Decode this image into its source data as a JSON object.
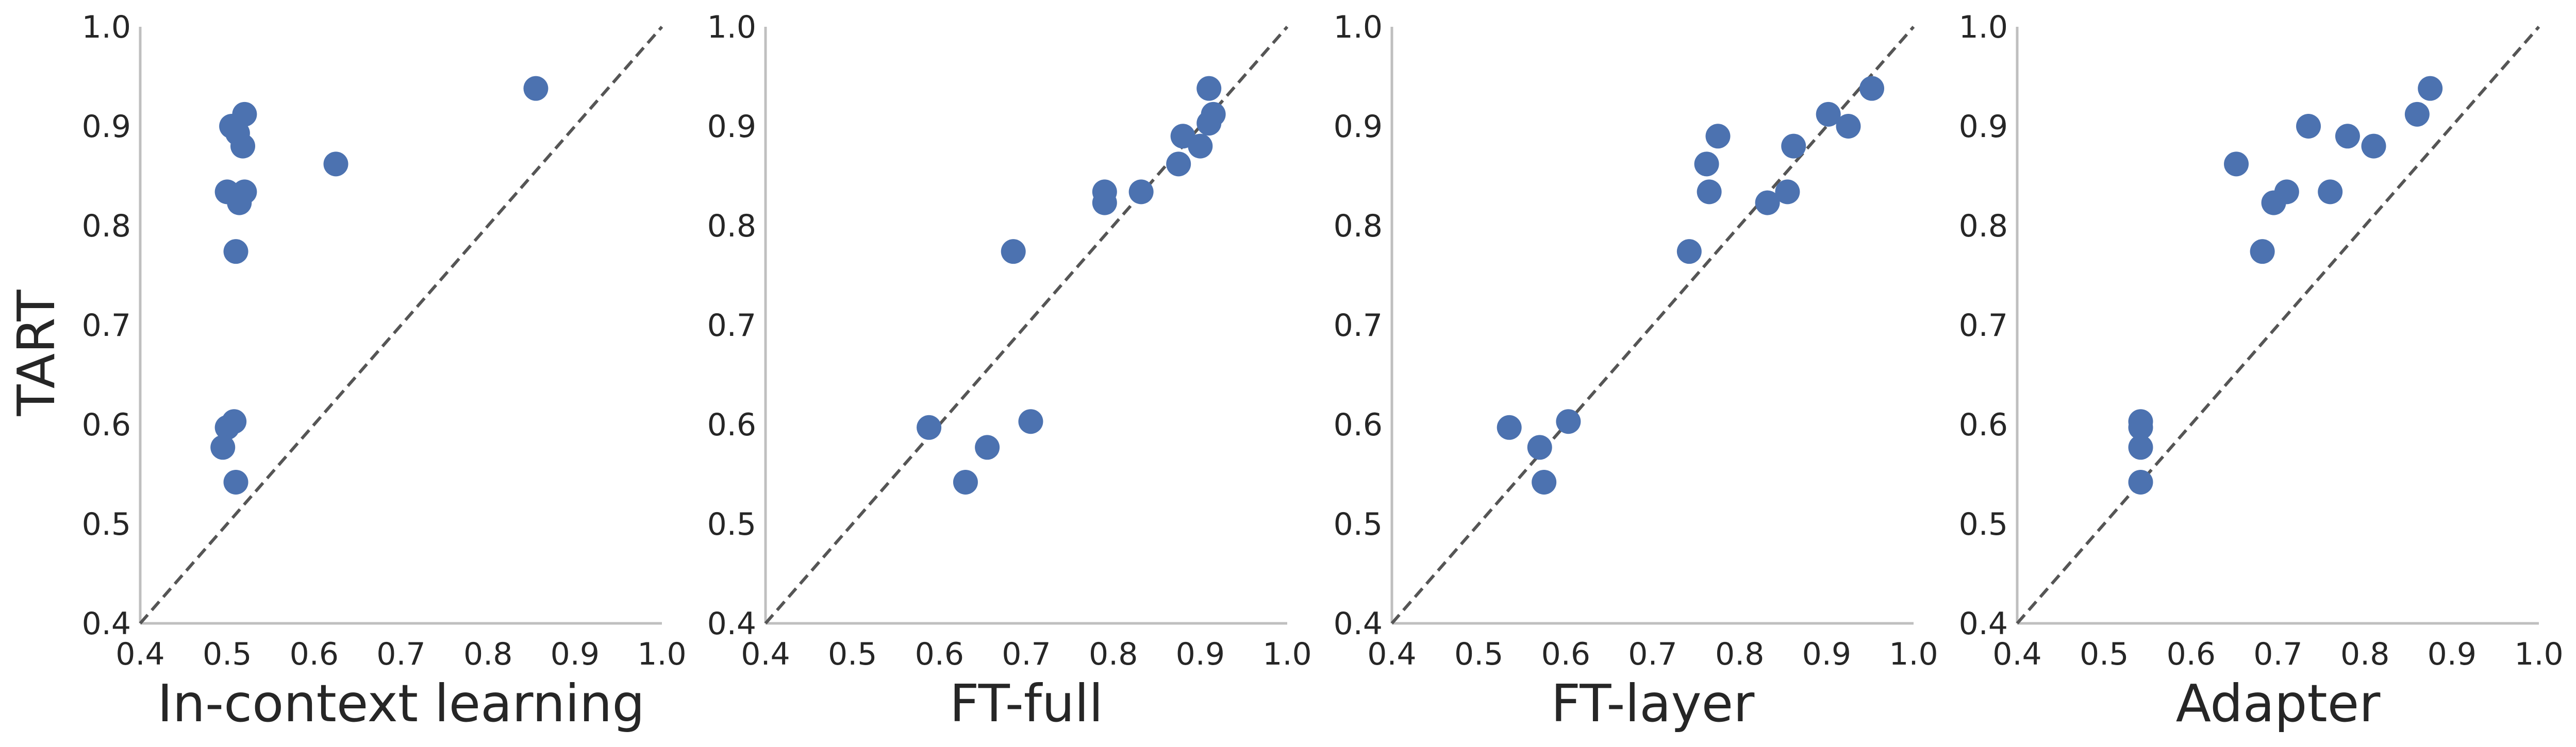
{
  "chart_data": [
    {
      "type": "scatter",
      "xlabel": "In-context learning",
      "ylabel": "TART",
      "xlim": [
        0.4,
        1.0
      ],
      "ylim": [
        0.4,
        1.0
      ],
      "xticks": [
        "0.4",
        "0.5",
        "0.6",
        "0.7",
        "0.8",
        "0.9",
        "1.0"
      ],
      "yticks": [
        "0.4",
        "0.5",
        "0.6",
        "0.7",
        "0.8",
        "0.9",
        "1.0"
      ],
      "diagonal": "y = x (dashed)",
      "grid": false,
      "marker_color": "#4c72b0",
      "points": [
        {
          "x": 0.855,
          "y": 0.938
        },
        {
          "x": 0.625,
          "y": 0.862
        },
        {
          "x": 0.52,
          "y": 0.912
        },
        {
          "x": 0.505,
          "y": 0.9
        },
        {
          "x": 0.512,
          "y": 0.893
        },
        {
          "x": 0.518,
          "y": 0.88
        },
        {
          "x": 0.5,
          "y": 0.834
        },
        {
          "x": 0.52,
          "y": 0.834
        },
        {
          "x": 0.514,
          "y": 0.823
        },
        {
          "x": 0.51,
          "y": 0.774
        },
        {
          "x": 0.508,
          "y": 0.603
        },
        {
          "x": 0.5,
          "y": 0.597
        },
        {
          "x": 0.495,
          "y": 0.577
        },
        {
          "x": 0.51,
          "y": 0.542
        }
      ]
    },
    {
      "type": "scatter",
      "xlabel": "FT-full",
      "ylabel": "",
      "xlim": [
        0.4,
        1.0
      ],
      "ylim": [
        0.4,
        1.0
      ],
      "xticks": [
        "0.4",
        "0.5",
        "0.6",
        "0.7",
        "0.8",
        "0.9",
        "1.0"
      ],
      "yticks": [
        "0.4",
        "0.5",
        "0.6",
        "0.7",
        "0.8",
        "0.9",
        "1.0"
      ],
      "diagonal": "y = x (dashed)",
      "grid": false,
      "marker_color": "#4c72b0",
      "points": [
        {
          "x": 0.91,
          "y": 0.938
        },
        {
          "x": 0.915,
          "y": 0.912
        },
        {
          "x": 0.91,
          "y": 0.903
        },
        {
          "x": 0.88,
          "y": 0.89
        },
        {
          "x": 0.9,
          "y": 0.88
        },
        {
          "x": 0.875,
          "y": 0.862
        },
        {
          "x": 0.79,
          "y": 0.834
        },
        {
          "x": 0.832,
          "y": 0.834
        },
        {
          "x": 0.79,
          "y": 0.823
        },
        {
          "x": 0.685,
          "y": 0.774
        },
        {
          "x": 0.705,
          "y": 0.603
        },
        {
          "x": 0.588,
          "y": 0.597
        },
        {
          "x": 0.655,
          "y": 0.577
        },
        {
          "x": 0.63,
          "y": 0.542
        }
      ]
    },
    {
      "type": "scatter",
      "xlabel": "FT-layer",
      "ylabel": "",
      "xlim": [
        0.4,
        1.0
      ],
      "ylim": [
        0.4,
        1.0
      ],
      "xticks": [
        "0.4",
        "0.5",
        "0.6",
        "0.7",
        "0.8",
        "0.9",
        "1.0"
      ],
      "yticks": [
        "0.4",
        "0.5",
        "0.6",
        "0.7",
        "0.8",
        "0.9",
        "1.0"
      ],
      "diagonal": "y = x (dashed)",
      "grid": false,
      "marker_color": "#4c72b0",
      "points": [
        {
          "x": 0.952,
          "y": 0.938
        },
        {
          "x": 0.902,
          "y": 0.912
        },
        {
          "x": 0.925,
          "y": 0.9
        },
        {
          "x": 0.775,
          "y": 0.89
        },
        {
          "x": 0.862,
          "y": 0.88
        },
        {
          "x": 0.762,
          "y": 0.862
        },
        {
          "x": 0.765,
          "y": 0.834
        },
        {
          "x": 0.855,
          "y": 0.834
        },
        {
          "x": 0.832,
          "y": 0.823
        },
        {
          "x": 0.742,
          "y": 0.774
        },
        {
          "x": 0.603,
          "y": 0.603
        },
        {
          "x": 0.535,
          "y": 0.597
        },
        {
          "x": 0.57,
          "y": 0.577
        },
        {
          "x": 0.575,
          "y": 0.542
        }
      ]
    },
    {
      "type": "scatter",
      "xlabel": "Adapter",
      "ylabel": "",
      "xlim": [
        0.4,
        1.0
      ],
      "ylim": [
        0.4,
        1.0
      ],
      "xticks": [
        "0.4",
        "0.5",
        "0.6",
        "0.7",
        "0.8",
        "0.9",
        "1.0"
      ],
      "yticks": [
        "0.4",
        "0.5",
        "0.6",
        "0.7",
        "0.8",
        "0.9",
        "1.0"
      ],
      "diagonal": "y = x (dashed)",
      "grid": false,
      "marker_color": "#4c72b0",
      "points": [
        {
          "x": 0.875,
          "y": 0.938
        },
        {
          "x": 0.86,
          "y": 0.912
        },
        {
          "x": 0.735,
          "y": 0.9
        },
        {
          "x": 0.78,
          "y": 0.89
        },
        {
          "x": 0.81,
          "y": 0.88
        },
        {
          "x": 0.652,
          "y": 0.862
        },
        {
          "x": 0.71,
          "y": 0.834
        },
        {
          "x": 0.76,
          "y": 0.834
        },
        {
          "x": 0.695,
          "y": 0.823
        },
        {
          "x": 0.682,
          "y": 0.774
        },
        {
          "x": 0.542,
          "y": 0.603
        },
        {
          "x": 0.542,
          "y": 0.597
        },
        {
          "x": 0.542,
          "y": 0.577
        },
        {
          "x": 0.542,
          "y": 0.542
        }
      ]
    }
  ]
}
